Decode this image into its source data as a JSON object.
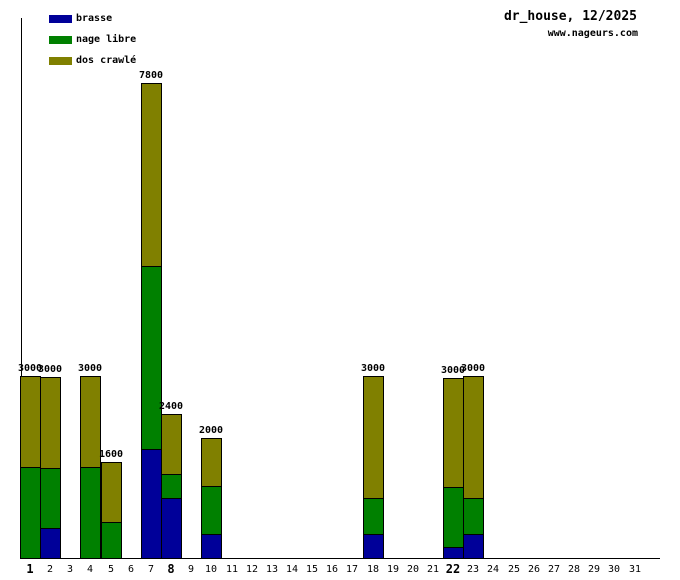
{
  "header": {
    "title": "dr_house, 12/2025",
    "watermark": "www.nageurs.com"
  },
  "chart_data": {
    "type": "bar",
    "stacked": true,
    "title": "dr_house, 12/2025",
    "xlabel": "",
    "ylabel": "",
    "legend_position": "top-left",
    "categories": [
      1,
      2,
      3,
      4,
      5,
      6,
      7,
      8,
      9,
      10,
      11,
      12,
      13,
      14,
      15,
      16,
      17,
      18,
      19,
      20,
      21,
      22,
      23,
      24,
      25,
      26,
      27,
      28,
      29,
      30,
      31
    ],
    "bold_categories": [
      1,
      8,
      22
    ],
    "series": [
      {
        "name": "brasse",
        "color": "#000099",
        "values": [
          0,
          500,
          0,
          0,
          0,
          0,
          1800,
          1000,
          0,
          400,
          0,
          0,
          0,
          0,
          0,
          0,
          0,
          400,
          0,
          0,
          0,
          200,
          400,
          0,
          0,
          0,
          0,
          0,
          0,
          0,
          0
        ]
      },
      {
        "name": "nage libre",
        "color": "#008000",
        "values": [
          1500,
          1000,
          0,
          1500,
          600,
          0,
          3000,
          400,
          0,
          800,
          0,
          0,
          0,
          0,
          0,
          0,
          0,
          600,
          0,
          0,
          0,
          1000,
          600,
          0,
          0,
          0,
          0,
          0,
          0,
          0,
          0
        ]
      },
      {
        "name": "dos crawlé",
        "color": "#808000",
        "values": [
          1500,
          1500,
          0,
          1500,
          1000,
          0,
          3000,
          1000,
          0,
          800,
          0,
          0,
          0,
          0,
          0,
          0,
          0,
          2000,
          0,
          0,
          0,
          1800,
          2000,
          0,
          0,
          0,
          0,
          0,
          0,
          0,
          0
        ]
      }
    ],
    "totals_labels": {
      "1": "3000",
      "2": "3000",
      "4": "3000",
      "5": "1600",
      "7": "7800",
      "8": "2400",
      "10": "2000",
      "18": "3000",
      "22": "3000",
      "23": "3000"
    },
    "axis_color": "#000000",
    "background_color": "#ffffff"
  }
}
